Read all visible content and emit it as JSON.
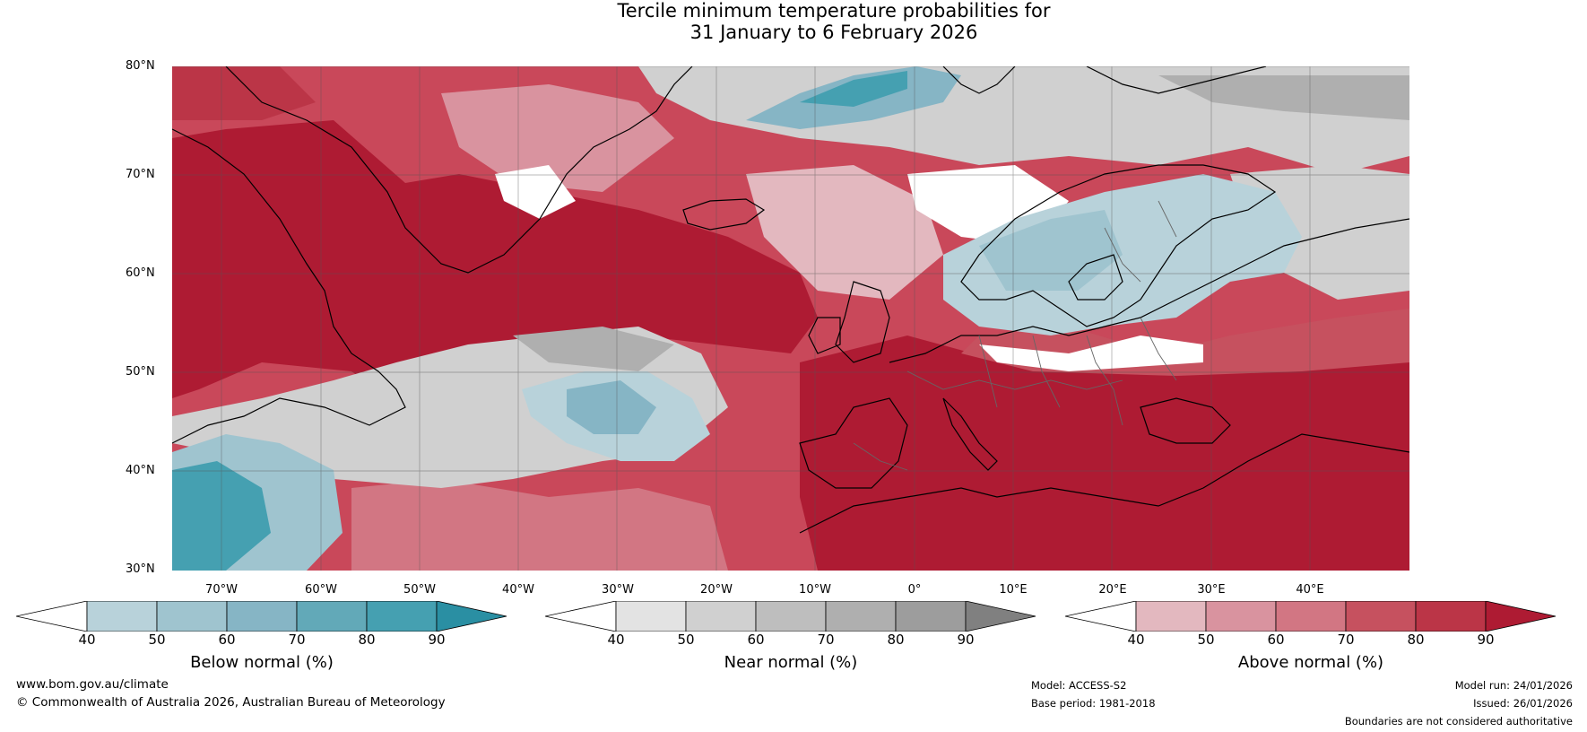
{
  "title": {
    "line1": "Tercile minimum temperature probabilities for",
    "line2": "31 January to 6 February 2026"
  },
  "axes": {
    "lat_labels": [
      "80°N",
      "70°N",
      "60°N",
      "50°N",
      "40°N",
      "30°N"
    ],
    "lon_labels": [
      "70°W",
      "60°W",
      "50°W",
      "40°W",
      "30°W",
      "20°W",
      "10°W",
      "0°",
      "10°E",
      "20°E",
      "30°E",
      "40°E"
    ]
  },
  "legends": [
    {
      "name": "below",
      "label": "Below normal (%)",
      "ticks": [
        "40",
        "50",
        "60",
        "70",
        "80",
        "90"
      ],
      "colors": [
        "#ffffff",
        "#b8d2da",
        "#9fc4cf",
        "#86b5c5",
        "#62a9b8",
        "#45a0b1",
        "#2a8fa3"
      ]
    },
    {
      "name": "near",
      "label": "Near normal (%)",
      "ticks": [
        "40",
        "50",
        "60",
        "70",
        "80",
        "90"
      ],
      "colors": [
        "#ffffff",
        "#e3e3e3",
        "#d0d0d0",
        "#bebebe",
        "#afafaf",
        "#9d9d9d",
        "#808080"
      ]
    },
    {
      "name": "above",
      "label": "Above normal (%)",
      "ticks": [
        "40",
        "50",
        "60",
        "70",
        "80",
        "90"
      ],
      "colors": [
        "#ffffff",
        "#e3b8bf",
        "#d9939f",
        "#d27683",
        "#c6515f",
        "#bb3547",
        "#ae1b33"
      ]
    }
  ],
  "footer": {
    "website": "www.bom.gov.au/climate",
    "copyright": "© Commonwealth of Australia 2026, Australian Bureau of Meteorology",
    "model": "Model: ACCESS-S2",
    "base_period": "Base period: 1981-2018",
    "model_run": "Model run: 24/01/2026",
    "issued": "Issued: 26/01/2026",
    "disclaimer": "Boundaries are not considered authoritative"
  },
  "colors": {
    "land_outline": "#000000",
    "border": "#666666"
  }
}
